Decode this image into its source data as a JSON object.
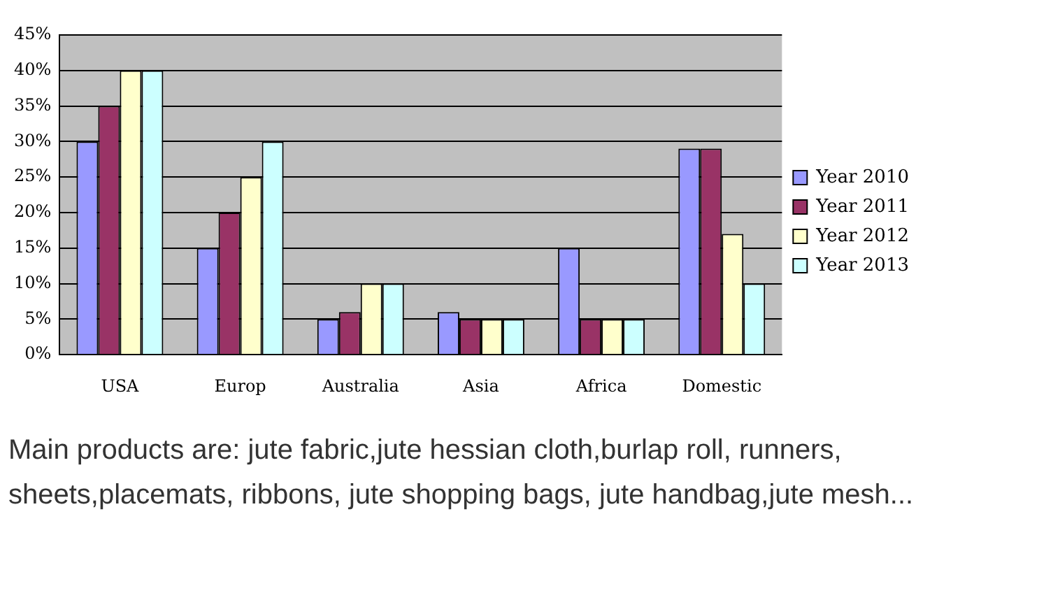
{
  "chart_data": {
    "type": "bar",
    "categories": [
      "USA",
      "Europ",
      "Australia",
      "Asia",
      "Africa",
      "Domestic"
    ],
    "series": [
      {
        "name": "Year 2010",
        "color": "#9999ff",
        "values": [
          30,
          15,
          5,
          6,
          15,
          29
        ]
      },
      {
        "name": "Year 2011",
        "color": "#993366",
        "values": [
          35,
          20,
          6,
          5,
          5,
          29
        ]
      },
      {
        "name": "Year 2012",
        "color": "#ffffcc",
        "values": [
          40,
          25,
          10,
          5,
          5,
          17
        ]
      },
      {
        "name": "Year 2013",
        "color": "#ccffff",
        "values": [
          40,
          30,
          10,
          5,
          5,
          10
        ]
      }
    ],
    "ylim": [
      0,
      45
    ],
    "yticks": [
      {
        "value": 0,
        "label": "0%"
      },
      {
        "value": 5,
        "label": "5%"
      },
      {
        "value": 10,
        "label": "10%"
      },
      {
        "value": 15,
        "label": "15%"
      },
      {
        "value": 20,
        "label": "20%"
      },
      {
        "value": 25,
        "label": "25%"
      },
      {
        "value": 30,
        "label": "30%"
      },
      {
        "value": 35,
        "label": "35%"
      },
      {
        "value": 40,
        "label": "40%"
      },
      {
        "value": 45,
        "label": "45%"
      }
    ],
    "grid": "y",
    "legend": "right",
    "annotations": [
      "Main products are: jute fabric,jute hessian cloth,burlap roll, runners, sheets,placemats, ribbons, jute shopping bags, jute handbag,jute mesh..."
    ]
  }
}
